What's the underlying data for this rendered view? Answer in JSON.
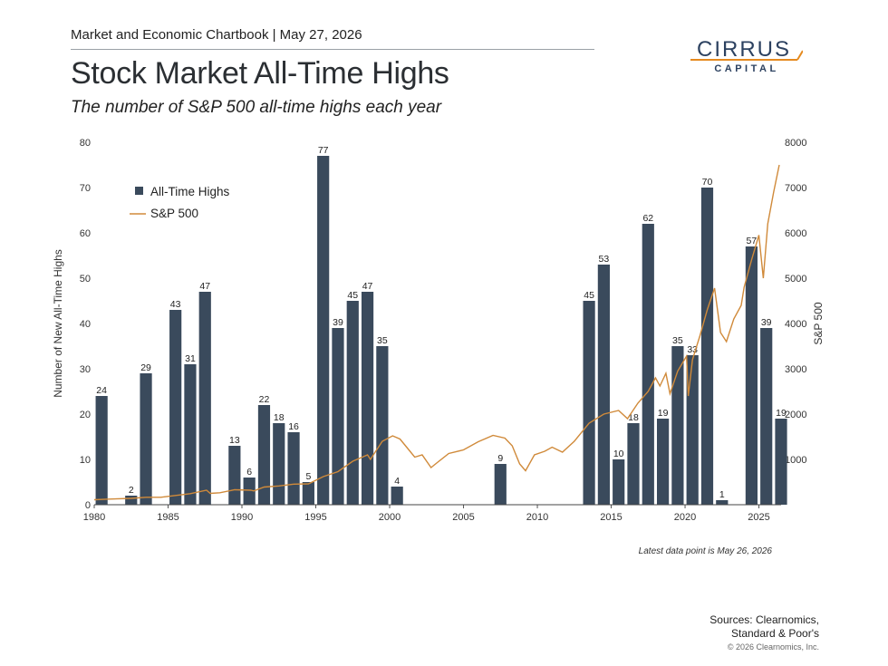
{
  "header": {
    "chartbook": "Market and Economic Chartbook | May 27, 2026",
    "title": "Stock Market All-Time Highs",
    "subtitle": "The number of S&P 500 all-time highs each year"
  },
  "logo": {
    "line1": "CIRRUS",
    "line2": "CAPITAL",
    "text_color": "#2c4160",
    "accent_color": "#e58a1f"
  },
  "footer": {
    "note": "Latest data point is May 26, 2026",
    "sources_line1": "Sources: Clearnomics,",
    "sources_line2": "Standard & Poor's",
    "copyright": "© 2026 Clearnomics, Inc."
  },
  "chart_data": {
    "type": "bar",
    "bar_color": "#3a4a5c",
    "line_color": "#d08a3a",
    "legend": [
      "All-Time Highs",
      "S&P 500"
    ],
    "legend_position": "top-left",
    "ylabel": "Number of New All-Time Highs",
    "y2label": "S&P 500",
    "ylim": [
      0,
      80
    ],
    "y2lim": [
      0,
      8000
    ],
    "xlim": [
      1980,
      2026.5
    ],
    "x_ticks": [
      1980,
      1985,
      1990,
      1995,
      2000,
      2005,
      2010,
      2015,
      2020,
      2025
    ],
    "y_ticks": [
      0,
      10,
      20,
      30,
      40,
      50,
      60,
      70,
      80
    ],
    "y2_ticks": [
      1000,
      2000,
      3000,
      4000,
      5000,
      6000,
      7000,
      8000
    ],
    "series": [
      {
        "name": "All-Time Highs",
        "kind": "bar",
        "years": [
          1980,
          1981,
          1982,
          1983,
          1984,
          1985,
          1986,
          1987,
          1988,
          1989,
          1990,
          1991,
          1992,
          1993,
          1994,
          1995,
          1996,
          1997,
          1998,
          1999,
          2000,
          2001,
          2002,
          2003,
          2004,
          2005,
          2006,
          2007,
          2008,
          2009,
          2010,
          2011,
          2012,
          2013,
          2014,
          2015,
          2016,
          2017,
          2018,
          2019,
          2020,
          2021,
          2022,
          2023,
          2024,
          2025,
          2026
        ],
        "values": [
          24,
          0,
          2,
          29,
          0,
          43,
          31,
          47,
          0,
          13,
          6,
          22,
          18,
          16,
          5,
          77,
          39,
          45,
          47,
          35,
          4,
          0,
          0,
          0,
          0,
          0,
          0,
          9,
          0,
          0,
          0,
          0,
          0,
          45,
          53,
          10,
          18,
          62,
          19,
          35,
          33,
          70,
          1,
          0,
          57,
          39,
          19
        ]
      },
      {
        "name": "S&P 500",
        "kind": "line",
        "x": [
          1980.0,
          1981.0,
          1982.5,
          1983.5,
          1984.5,
          1985.5,
          1986.5,
          1987.6,
          1987.85,
          1988.5,
          1989.5,
          1990.6,
          1990.8,
          1991.5,
          1992.5,
          1993.5,
          1994.5,
          1995.5,
          1996.5,
          1997.5,
          1998.5,
          1998.7,
          1999.5,
          2000.2,
          2000.7,
          2001.2,
          2001.7,
          2002.2,
          2002.8,
          2003.3,
          2004.0,
          2005.0,
          2006.0,
          2007.0,
          2007.8,
          2008.3,
          2008.8,
          2009.2,
          2009.8,
          2010.5,
          2011.0,
          2011.7,
          2012.5,
          2013.5,
          2014.5,
          2015.5,
          2016.1,
          2016.8,
          2017.5,
          2018.0,
          2018.3,
          2018.7,
          2018.98,
          2019.5,
          2020.1,
          2020.22,
          2020.5,
          2021.0,
          2021.5,
          2022.0,
          2022.4,
          2022.8,
          2023.3,
          2023.8,
          2024.0,
          2024.5,
          2025.0,
          2025.3,
          2025.6,
          2026.0,
          2026.38
        ],
        "y": [
          110,
          125,
          140,
          165,
          165,
          205,
          245,
          320,
          250,
          265,
          330,
          320,
          305,
          390,
          415,
          455,
          460,
          620,
          730,
          960,
          1100,
          1000,
          1400,
          1520,
          1450,
          1250,
          1050,
          1100,
          820,
          950,
          1130,
          1210,
          1390,
          1530,
          1470,
          1300,
          900,
          750,
          1100,
          1180,
          1270,
          1160,
          1400,
          1800,
          2000,
          2080,
          1900,
          2240,
          2500,
          2800,
          2620,
          2900,
          2450,
          2950,
          3280,
          2400,
          3200,
          3720,
          4300,
          4780,
          3800,
          3600,
          4100,
          4400,
          4800,
          5400,
          5950,
          5000,
          6200,
          6900,
          7500
        ]
      }
    ],
    "bar_labels_show_zero": false
  }
}
